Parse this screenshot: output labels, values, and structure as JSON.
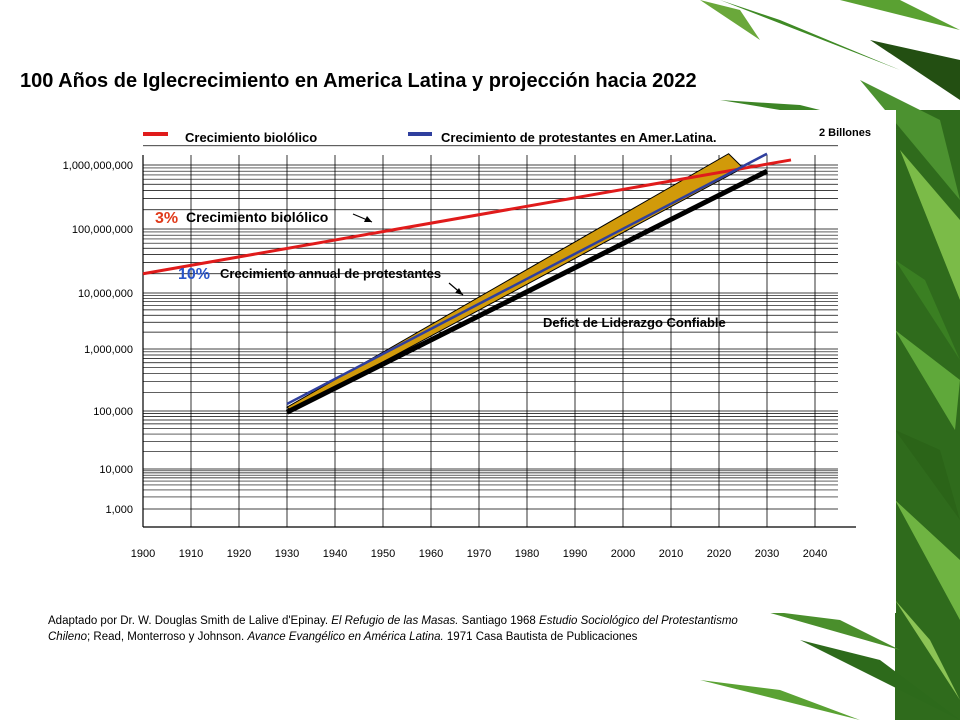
{
  "title": "100 Años de Iglecrecimiento en America Latina y projección hacia 2022",
  "legend": {
    "biological": "Crecimiento biolólico",
    "protestant": "Crecimiento de protestantes en Amer.Latina."
  },
  "top_right_label": "2 Billones",
  "annotations": {
    "bio_rate": "3%",
    "bio_text": "Crecimiento biolólico",
    "prot_rate": "10%",
    "prot_text": "Crecimiento annual de protestantes",
    "deficit": "Defict de Liderazgo Confiable"
  },
  "source": {
    "part1": "Adaptado por Dr. W. Douglas Smith de Lalive d'Epinay. ",
    "italic1": "El Refugio de las Masas.",
    "part2": " Santiago 1968 ",
    "italic2": "Estudio Sociológico del Protestantismo Chileno",
    "part3": "; Read, Monterroso y Johnson. ",
    "italic3": "Avance Evangélico en América Latina.",
    "part4": " 1971 Casa Bautista de Publicaciones"
  },
  "colors": {
    "biological": "#e01b1b",
    "protestant": "#2f3f9e",
    "deficit_fill": "#d19a0a",
    "baseline": "#000000",
    "rate_bio": "#e03a1a",
    "rate_prot": "#2a55c8"
  },
  "chart_data": {
    "type": "line",
    "yscale": "log",
    "x_ticks": [
      1900,
      1910,
      1920,
      1930,
      1940,
      1950,
      1960,
      1970,
      1980,
      1990,
      2000,
      2010,
      2020,
      2030,
      2040
    ],
    "y_ticks": [
      {
        "label": "1,000",
        "value": 1000
      },
      {
        "label": "10,000",
        "value": 10000
      },
      {
        "label": "100,000",
        "value": 100000
      },
      {
        "label": "1,000,000",
        "value": 1000000
      },
      {
        "label": "10,000,000",
        "value": 10000000
      },
      {
        "label": "100,000,000",
        "value": 100000000
      },
      {
        "label": "1,000,000,000",
        "value": 1000000000
      }
    ],
    "series": [
      {
        "name": "Crecimiento biolólico",
        "color": "#e01b1b",
        "x": [
          1900,
          2035
        ],
        "y": [
          20000000,
          1200000000
        ]
      },
      {
        "name": "Crecimiento de protestantes en Amer.Latina.",
        "color": "#2f3f9e",
        "x": [
          1930,
          2030
        ],
        "y": [
          130000,
          1500000000
        ]
      },
      {
        "name": "",
        "color": "#000000",
        "x": [
          1930,
          2030
        ],
        "y": [
          95000,
          800000000
        ]
      }
    ],
    "deficit_band": {
      "x": [
        1930,
        2022,
        2025,
        1931
      ],
      "y": [
        115000,
        1500000000,
        900000000,
        100000
      ]
    }
  }
}
